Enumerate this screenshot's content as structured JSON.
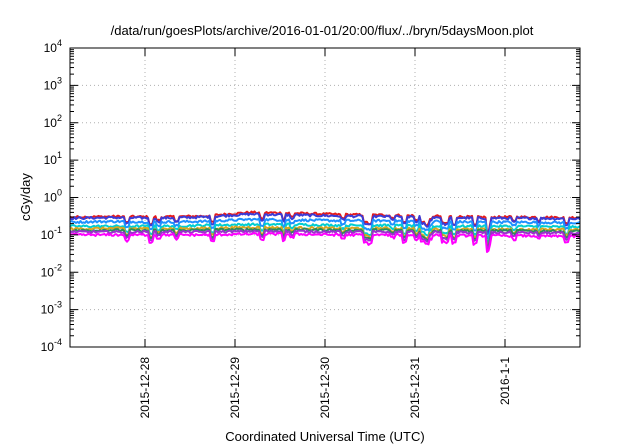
{
  "chart_data": {
    "type": "line",
    "title": "/data/run/goesPlots/archive/2016-01-01/20:00/flux/../bryn/5daysMoon.plot",
    "xlabel": "Coordinated Universal Time (UTC)",
    "ylabel": "cGy/day",
    "y_scale": "log",
    "ylim": [
      0.0001,
      10000
    ],
    "y_ticks": [
      {
        "base": "10",
        "exp": "-4",
        "value": 0.0001
      },
      {
        "base": "10",
        "exp": "-3",
        "value": 0.001
      },
      {
        "base": "10",
        "exp": "-2",
        "value": 0.01
      },
      {
        "base": "10",
        "exp": "-1",
        "value": 0.1
      },
      {
        "base": "10",
        "exp": "0",
        "value": 1
      },
      {
        "base": "10",
        "exp": "1",
        "value": 10
      },
      {
        "base": "10",
        "exp": "2",
        "value": 100
      },
      {
        "base": "10",
        "exp": "3",
        "value": 1000
      },
      {
        "base": "10",
        "exp": "4",
        "value": 10000
      }
    ],
    "xlim": [
      "2015-12-27 04:00",
      "2016-01-01 20:00"
    ],
    "x_ticks": [
      "2015-12-28",
      "2015-12-29",
      "2015-12-30",
      "2015-12-31",
      "2016-1-1"
    ],
    "x_tick_times": [
      "2015-12-28 00:00",
      "2015-12-29 00:00",
      "2015-12-30 00:00",
      "2015-12-31 00:00",
      "2016-01-01 00:00"
    ],
    "grid": true,
    "x": [
      "2015-12-27 04:00",
      "2015-12-27 16:00",
      "2015-12-28 04:00",
      "2015-12-28 16:00",
      "2015-12-29 04:00",
      "2015-12-29 16:00",
      "2015-12-30 04:00",
      "2015-12-30 16:00",
      "2015-12-31 04:00",
      "2015-12-31 16:00",
      "2016-01-01 04:00",
      "2016-01-01 20:00"
    ],
    "series": [
      {
        "color": "#e41a1c",
        "values": [
          0.3,
          0.31,
          0.3,
          0.32,
          0.4,
          0.38,
          0.35,
          0.34,
          0.32,
          0.3,
          0.3,
          0.29
        ]
      },
      {
        "color": "#3b3bd6",
        "values": [
          0.28,
          0.29,
          0.28,
          0.3,
          0.36,
          0.34,
          0.32,
          0.31,
          0.3,
          0.28,
          0.28,
          0.27
        ]
      },
      {
        "color": "#1e90ff",
        "values": [
          0.22,
          0.23,
          0.22,
          0.23,
          0.26,
          0.25,
          0.24,
          0.24,
          0.23,
          0.22,
          0.22,
          0.21
        ]
      },
      {
        "color": "#00ced1",
        "values": [
          0.17,
          0.17,
          0.17,
          0.18,
          0.19,
          0.19,
          0.18,
          0.18,
          0.17,
          0.17,
          0.17,
          0.16
        ]
      },
      {
        "color": "#daa520",
        "values": [
          0.145,
          0.15,
          0.145,
          0.15,
          0.16,
          0.155,
          0.15,
          0.15,
          0.145,
          0.14,
          0.14,
          0.14
        ]
      },
      {
        "color": "#2e8b57",
        "values": [
          0.13,
          0.135,
          0.13,
          0.135,
          0.14,
          0.14,
          0.135,
          0.135,
          0.13,
          0.13,
          0.13,
          0.125
        ]
      },
      {
        "color": "#9932cc",
        "values": [
          0.12,
          0.12,
          0.12,
          0.12,
          0.125,
          0.125,
          0.12,
          0.12,
          0.12,
          0.115,
          0.115,
          0.11
        ]
      },
      {
        "color": "#ff00ff",
        "values": [
          0.1,
          0.1,
          0.1,
          0.1,
          0.105,
          0.105,
          0.1,
          0.1,
          0.1,
          0.095,
          0.095,
          0.09
        ]
      }
    ]
  }
}
